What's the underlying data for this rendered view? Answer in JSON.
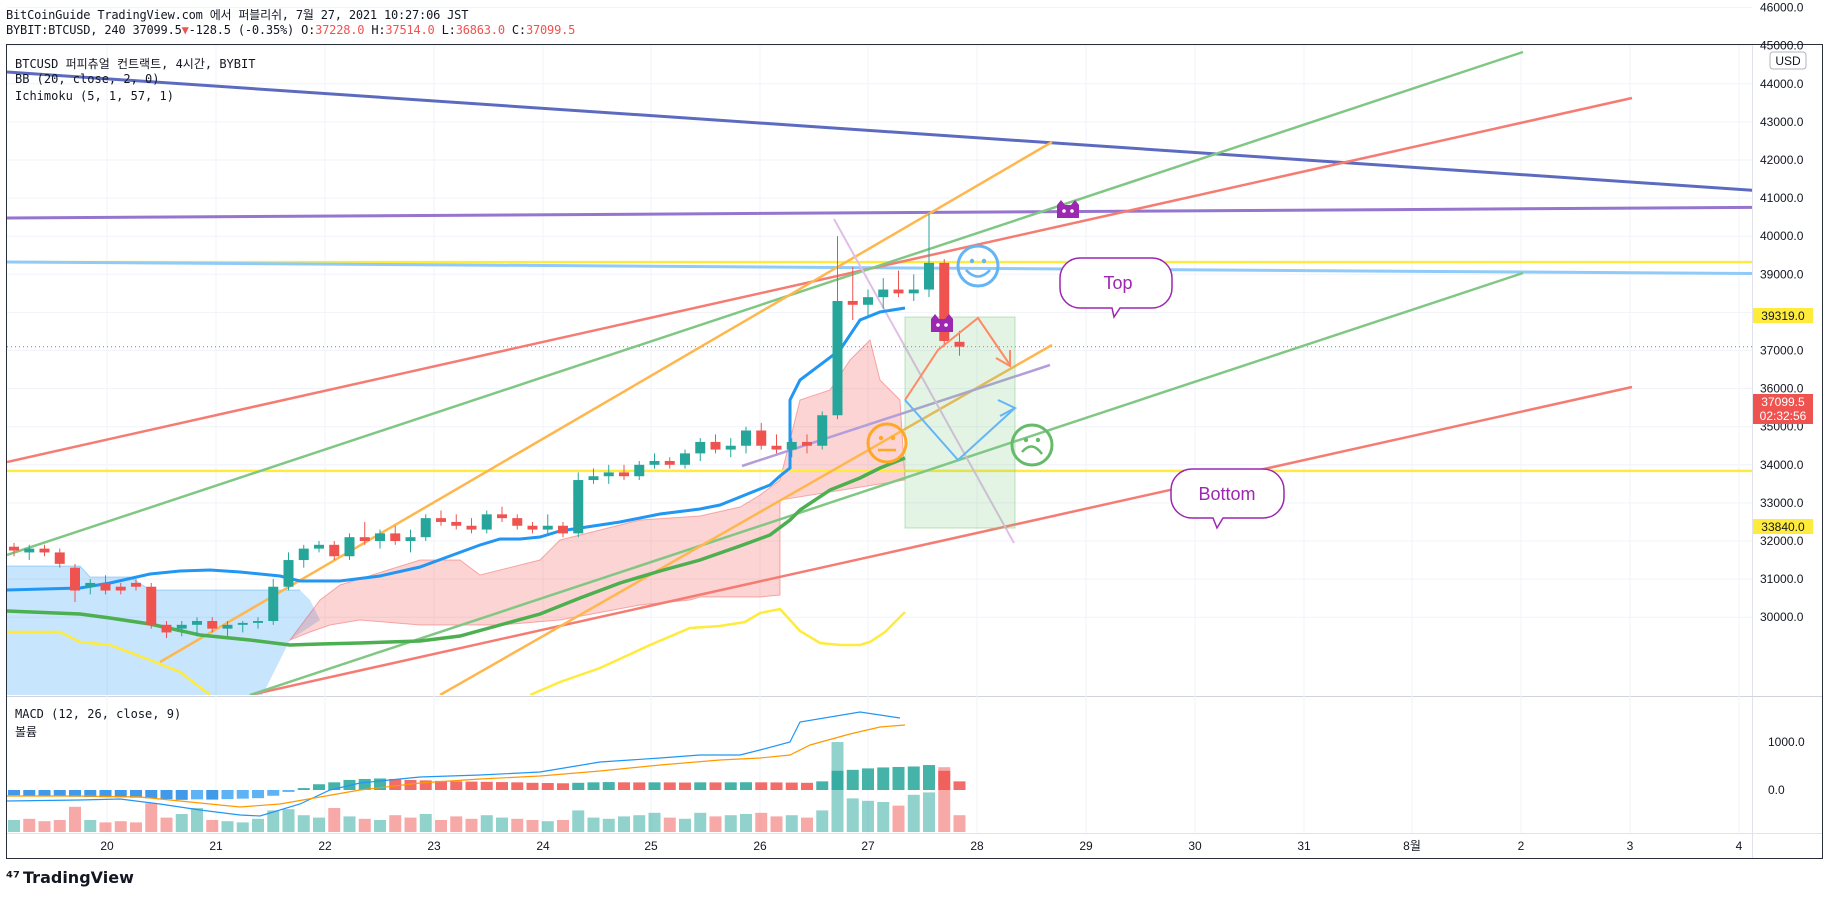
{
  "header": {
    "title_line": "BitCoinGuide TradingView.com 에서 퍼블리쉬, 7월 27, 2021 10:27:06 JST",
    "symbol": "BYBIT:BTCUSD, 240 37099.5",
    "change_arrow": "▼",
    "change": "-128.5 (-0.35%)",
    "o_label": "O:",
    "o_value": "37228.0",
    "h_label": "H:",
    "h_value": "37514.0",
    "l_label": "L:",
    "l_value": "36863.0",
    "c_label": "C:",
    "c_value": "37099.5"
  },
  "legend": {
    "symbol_line": "BTCUSD 퍼피츄얼 컨트랙트, 4시간, BYBIT",
    "bb": "BB (20, close, 2, 0)",
    "ichimoku": "Ichimoku (5, 1, 57, 1)",
    "macd": "MACD (12, 26, close, 9)",
    "volume": "볼륨"
  },
  "currency_badge": "USD",
  "price_tags": {
    "resistance": "39319.0",
    "current": "37099.5",
    "countdown": "02:32:56",
    "support": "33840.0"
  },
  "bubbles": {
    "top": "Top",
    "bottom": "Bottom"
  },
  "brand": "TradingView",
  "colors": {
    "up": "#26a69a",
    "down": "#ef5350",
    "bb_basis": "#2196f3",
    "kijun": "#4caf50",
    "yellow": "#ffeb3b",
    "purple": "#9c27b0"
  },
  "chart_data": {
    "type": "candlestick",
    "x_axis_ticks": [
      "20",
      "21",
      "22",
      "23",
      "24",
      "25",
      "26",
      "27",
      "28",
      "29",
      "30",
      "31",
      "8월",
      "2",
      "3",
      "4"
    ],
    "price_axis_ticks": [
      "30000.0",
      "31000.0",
      "32000.0",
      "33000.0",
      "34000.0",
      "35000.0",
      "36000.0",
      "37000.0",
      "38000.0",
      "39000.0",
      "40000.0",
      "41000.0",
      "42000.0",
      "43000.0",
      "44000.0",
      "45000.0",
      "46000.0"
    ],
    "price_range": [
      29500,
      46300
    ],
    "macd_axis_ticks": [
      "0.0",
      "1000.0"
    ],
    "macd_range": [
      -900,
      2000
    ],
    "horizontal_levels": [
      39319.0,
      33840.0
    ],
    "last_price": 37099.5,
    "candles": [
      {
        "o": 31850,
        "h": 31950,
        "l": 31600,
        "c": 31750
      },
      {
        "o": 31700,
        "h": 31900,
        "l": 31500,
        "c": 31800
      },
      {
        "o": 31800,
        "h": 31900,
        "l": 31600,
        "c": 31700
      },
      {
        "o": 31700,
        "h": 31800,
        "l": 31300,
        "c": 31400
      },
      {
        "o": 31300,
        "h": 31400,
        "l": 30400,
        "c": 30700
      },
      {
        "o": 30800,
        "h": 31000,
        "l": 30600,
        "c": 30900
      },
      {
        "o": 30900,
        "h": 31100,
        "l": 30600,
        "c": 30700
      },
      {
        "o": 30800,
        "h": 30900,
        "l": 30600,
        "c": 30700
      },
      {
        "o": 30900,
        "h": 31000,
        "l": 30700,
        "c": 30800
      },
      {
        "o": 30800,
        "h": 30900,
        "l": 29700,
        "c": 29800
      },
      {
        "o": 29800,
        "h": 29900,
        "l": 29450,
        "c": 29600
      },
      {
        "o": 29700,
        "h": 29900,
        "l": 29500,
        "c": 29800
      },
      {
        "o": 29800,
        "h": 30000,
        "l": 29500,
        "c": 29900
      },
      {
        "o": 29900,
        "h": 30000,
        "l": 29600,
        "c": 29700
      },
      {
        "o": 29700,
        "h": 29900,
        "l": 29500,
        "c": 29800
      },
      {
        "o": 29800,
        "h": 29900,
        "l": 29600,
        "c": 29850
      },
      {
        "o": 29850,
        "h": 30000,
        "l": 29700,
        "c": 29900
      },
      {
        "o": 29900,
        "h": 31000,
        "l": 29800,
        "c": 30800
      },
      {
        "o": 30800,
        "h": 31700,
        "l": 30700,
        "c": 31500
      },
      {
        "o": 31500,
        "h": 31900,
        "l": 31300,
        "c": 31800
      },
      {
        "o": 31800,
        "h": 32000,
        "l": 31700,
        "c": 31900
      },
      {
        "o": 31900,
        "h": 32000,
        "l": 31500,
        "c": 31600
      },
      {
        "o": 31600,
        "h": 32200,
        "l": 31500,
        "c": 32100
      },
      {
        "o": 32100,
        "h": 32500,
        "l": 31900,
        "c": 32000
      },
      {
        "o": 32000,
        "h": 32300,
        "l": 31800,
        "c": 32200
      },
      {
        "o": 32200,
        "h": 32400,
        "l": 31900,
        "c": 32000
      },
      {
        "o": 32000,
        "h": 32300,
        "l": 31700,
        "c": 32100
      },
      {
        "o": 32100,
        "h": 32700,
        "l": 32000,
        "c": 32600
      },
      {
        "o": 32600,
        "h": 32800,
        "l": 32400,
        "c": 32500
      },
      {
        "o": 32500,
        "h": 32700,
        "l": 32300,
        "c": 32400
      },
      {
        "o": 32400,
        "h": 32600,
        "l": 32200,
        "c": 32300
      },
      {
        "o": 32300,
        "h": 32800,
        "l": 32200,
        "c": 32700
      },
      {
        "o": 32700,
        "h": 32900,
        "l": 32500,
        "c": 32600
      },
      {
        "o": 32600,
        "h": 32700,
        "l": 32300,
        "c": 32400
      },
      {
        "o": 32400,
        "h": 32500,
        "l": 32200,
        "c": 32300
      },
      {
        "o": 32300,
        "h": 32700,
        "l": 32200,
        "c": 32400
      },
      {
        "o": 32400,
        "h": 32500,
        "l": 32100,
        "c": 32200
      },
      {
        "o": 32200,
        "h": 33800,
        "l": 32100,
        "c": 33600
      },
      {
        "o": 33600,
        "h": 33900,
        "l": 33500,
        "c": 33700
      },
      {
        "o": 33700,
        "h": 34000,
        "l": 33500,
        "c": 33800
      },
      {
        "o": 33800,
        "h": 34000,
        "l": 33600,
        "c": 33700
      },
      {
        "o": 33700,
        "h": 34100,
        "l": 33600,
        "c": 34000
      },
      {
        "o": 34000,
        "h": 34300,
        "l": 33900,
        "c": 34100
      },
      {
        "o": 34100,
        "h": 34200,
        "l": 33900,
        "c": 34000
      },
      {
        "o": 34000,
        "h": 34400,
        "l": 33900,
        "c": 34300
      },
      {
        "o": 34300,
        "h": 34700,
        "l": 34100,
        "c": 34600
      },
      {
        "o": 34600,
        "h": 34800,
        "l": 34300,
        "c": 34400
      },
      {
        "o": 34400,
        "h": 34700,
        "l": 34200,
        "c": 34500
      },
      {
        "o": 34500,
        "h": 35000,
        "l": 34300,
        "c": 34900
      },
      {
        "o": 34900,
        "h": 35100,
        "l": 34400,
        "c": 34500
      },
      {
        "o": 34500,
        "h": 34800,
        "l": 34300,
        "c": 34400
      },
      {
        "o": 34400,
        "h": 34700,
        "l": 34200,
        "c": 34600
      },
      {
        "o": 34600,
        "h": 34800,
        "l": 34300,
        "c": 34500
      },
      {
        "o": 34500,
        "h": 35400,
        "l": 34400,
        "c": 35300
      },
      {
        "o": 35300,
        "h": 40000,
        "l": 35200,
        "c": 38300
      },
      {
        "o": 38300,
        "h": 39200,
        "l": 37800,
        "c": 38200
      },
      {
        "o": 38200,
        "h": 38600,
        "l": 37900,
        "c": 38400
      },
      {
        "o": 38400,
        "h": 38900,
        "l": 38100,
        "c": 38600
      },
      {
        "o": 38600,
        "h": 39100,
        "l": 38400,
        "c": 38500
      },
      {
        "o": 38500,
        "h": 39000,
        "l": 38300,
        "c": 38600
      },
      {
        "o": 38600,
        "h": 40600,
        "l": 38400,
        "c": 39300
      },
      {
        "o": 39300,
        "h": 39400,
        "l": 37100,
        "c": 37250
      },
      {
        "o": 37228,
        "h": 37514,
        "l": 36863,
        "c": 37099.5
      }
    ],
    "macd_histogram": [
      {
        "v": -110,
        "d": "down"
      },
      {
        "v": -120,
        "d": "down"
      },
      {
        "v": -120,
        "d": "down"
      },
      {
        "v": -130,
        "d": "down"
      },
      {
        "v": -140,
        "d": "down"
      },
      {
        "v": -145,
        "d": "down"
      },
      {
        "v": -150,
        "d": "down"
      },
      {
        "v": -155,
        "d": "down"
      },
      {
        "v": -160,
        "d": "down"
      },
      {
        "v": -175,
        "d": "down"
      },
      {
        "v": -190,
        "d": "down"
      },
      {
        "v": -205,
        "d": "down"
      },
      {
        "v": -195,
        "d": "up"
      },
      {
        "v": -200,
        "d": "down"
      },
      {
        "v": -190,
        "d": "up"
      },
      {
        "v": -180,
        "d": "up"
      },
      {
        "v": -170,
        "d": "up"
      },
      {
        "v": -120,
        "d": "up"
      },
      {
        "v": -40,
        "d": "up"
      },
      {
        "v": 40,
        "d": "up"
      },
      {
        "v": 120,
        "d": "up"
      },
      {
        "v": 160,
        "d": "up"
      },
      {
        "v": 210,
        "d": "up"
      },
      {
        "v": 230,
        "d": "up"
      },
      {
        "v": 240,
        "d": "up"
      },
      {
        "v": 230,
        "d": "down"
      },
      {
        "v": 210,
        "d": "down"
      },
      {
        "v": 200,
        "d": "down"
      },
      {
        "v": 190,
        "d": "down"
      },
      {
        "v": 180,
        "d": "down"
      },
      {
        "v": 175,
        "d": "down"
      },
      {
        "v": 170,
        "d": "down"
      },
      {
        "v": 165,
        "d": "down"
      },
      {
        "v": 160,
        "d": "down"
      },
      {
        "v": 150,
        "d": "down"
      },
      {
        "v": 145,
        "d": "down"
      },
      {
        "v": 140,
        "d": "down"
      },
      {
        "v": 150,
        "d": "up"
      },
      {
        "v": 160,
        "d": "up"
      },
      {
        "v": 165,
        "d": "up"
      },
      {
        "v": 160,
        "d": "down"
      },
      {
        "v": 158,
        "d": "down"
      },
      {
        "v": 160,
        "d": "up"
      },
      {
        "v": 158,
        "d": "down"
      },
      {
        "v": 155,
        "d": "down"
      },
      {
        "v": 160,
        "d": "up"
      },
      {
        "v": 158,
        "d": "down"
      },
      {
        "v": 160,
        "d": "up"
      },
      {
        "v": 162,
        "d": "up"
      },
      {
        "v": 160,
        "d": "down"
      },
      {
        "v": 158,
        "d": "down"
      },
      {
        "v": 155,
        "d": "down"
      },
      {
        "v": 150,
        "d": "down"
      },
      {
        "v": 180,
        "d": "up"
      },
      {
        "v": 400,
        "d": "up"
      },
      {
        "v": 420,
        "d": "up"
      },
      {
        "v": 450,
        "d": "up"
      },
      {
        "v": 470,
        "d": "up"
      },
      {
        "v": 480,
        "d": "up"
      },
      {
        "v": 490,
        "d": "up"
      },
      {
        "v": 520,
        "d": "up"
      },
      {
        "v": 400,
        "d": "down"
      },
      {
        "v": 180,
        "d": "down"
      }
    ],
    "volume": [
      {
        "v": 1,
        "d": "up"
      },
      {
        "v": 1.1,
        "d": "down"
      },
      {
        "v": 0.9,
        "d": "down"
      },
      {
        "v": 1,
        "d": "down"
      },
      {
        "v": 2.1,
        "d": "down"
      },
      {
        "v": 1,
        "d": "up"
      },
      {
        "v": 0.8,
        "d": "down"
      },
      {
        "v": 0.9,
        "d": "down"
      },
      {
        "v": 0.8,
        "d": "down"
      },
      {
        "v": 2.4,
        "d": "down"
      },
      {
        "v": 1.2,
        "d": "down"
      },
      {
        "v": 1.5,
        "d": "up"
      },
      {
        "v": 2.0,
        "d": "up"
      },
      {
        "v": 1.0,
        "d": "down"
      },
      {
        "v": 0.9,
        "d": "up"
      },
      {
        "v": 0.8,
        "d": "up"
      },
      {
        "v": 1.1,
        "d": "up"
      },
      {
        "v": 1.8,
        "d": "up"
      },
      {
        "v": 1.9,
        "d": "up"
      },
      {
        "v": 1.4,
        "d": "up"
      },
      {
        "v": 1.2,
        "d": "up"
      },
      {
        "v": 2.0,
        "d": "down"
      },
      {
        "v": 1.3,
        "d": "up"
      },
      {
        "v": 1.1,
        "d": "down"
      },
      {
        "v": 1.0,
        "d": "up"
      },
      {
        "v": 1.4,
        "d": "down"
      },
      {
        "v": 1.2,
        "d": "down"
      },
      {
        "v": 1.5,
        "d": "up"
      },
      {
        "v": 1.0,
        "d": "down"
      },
      {
        "v": 1.3,
        "d": "down"
      },
      {
        "v": 1.1,
        "d": "down"
      },
      {
        "v": 1.4,
        "d": "up"
      },
      {
        "v": 1.2,
        "d": "up"
      },
      {
        "v": 1.1,
        "d": "down"
      },
      {
        "v": 1.0,
        "d": "down"
      },
      {
        "v": 0.9,
        "d": "up"
      },
      {
        "v": 1.0,
        "d": "down"
      },
      {
        "v": 1.8,
        "d": "up"
      },
      {
        "v": 1.2,
        "d": "up"
      },
      {
        "v": 1.1,
        "d": "up"
      },
      {
        "v": 1.3,
        "d": "up"
      },
      {
        "v": 1.4,
        "d": "up"
      },
      {
        "v": 1.6,
        "d": "up"
      },
      {
        "v": 1.2,
        "d": "down"
      },
      {
        "v": 1.1,
        "d": "up"
      },
      {
        "v": 1.6,
        "d": "up"
      },
      {
        "v": 1.3,
        "d": "down"
      },
      {
        "v": 1.4,
        "d": "up"
      },
      {
        "v": 1.5,
        "d": "up"
      },
      {
        "v": 1.6,
        "d": "down"
      },
      {
        "v": 1.3,
        "d": "down"
      },
      {
        "v": 1.4,
        "d": "up"
      },
      {
        "v": 1.2,
        "d": "down"
      },
      {
        "v": 1.8,
        "d": "up"
      },
      {
        "v": 7.5,
        "d": "up"
      },
      {
        "v": 2.8,
        "d": "up"
      },
      {
        "v": 2.6,
        "d": "up"
      },
      {
        "v": 2.5,
        "d": "up"
      },
      {
        "v": 2.2,
        "d": "down"
      },
      {
        "v": 3.1,
        "d": "up"
      },
      {
        "v": 3.3,
        "d": "up"
      },
      {
        "v": 5.4,
        "d": "down"
      },
      {
        "v": 1.4,
        "d": "down"
      }
    ]
  }
}
